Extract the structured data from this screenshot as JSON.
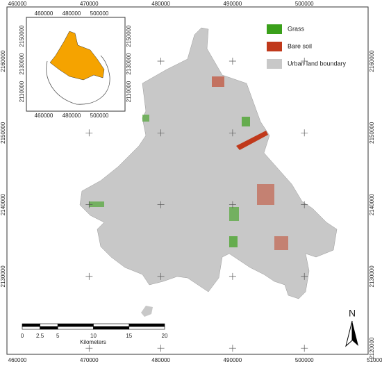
{
  "frame": {
    "top_labels": [
      "460000",
      "470000",
      "480000",
      "490000",
      "500000"
    ],
    "bottom_labels": [
      "460000",
      "470000",
      "480000",
      "490000",
      "500000",
      "510000"
    ],
    "left_labels": [
      "2160000",
      "2150000",
      "2140000",
      "2130000"
    ],
    "right_labels": [
      "2160000",
      "2150000",
      "2140000",
      "2130000",
      "2120000"
    ]
  },
  "inset": {
    "top_labels": [
      "460000",
      "480000",
      "500000"
    ],
    "bottom_labels": [
      "460000",
      "480000",
      "500000"
    ],
    "left_labels": [
      "2150000",
      "2130000",
      "2110000"
    ],
    "right_labels": [
      "2150000",
      "2130000",
      "2110000"
    ]
  },
  "legend": {
    "items": [
      "Grass",
      "Bare soil",
      "Urban land boundary"
    ]
  },
  "scale_bar": {
    "labels": [
      "0",
      "2.5",
      "5",
      "10",
      "15",
      "20"
    ],
    "unit": "Kilometers"
  },
  "north_arrow": {
    "label": "N"
  }
}
